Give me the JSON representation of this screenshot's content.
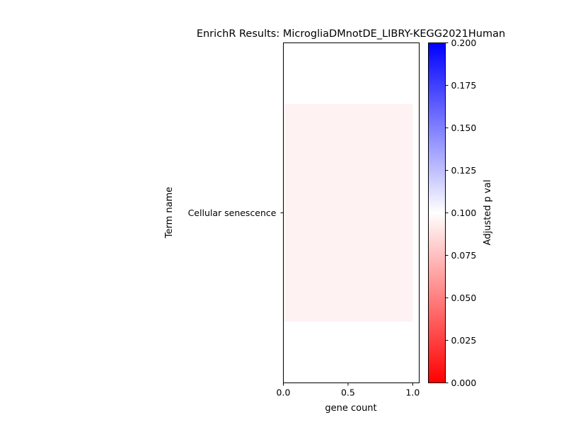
{
  "chart_data": {
    "type": "bar",
    "orientation": "horizontal",
    "title": "EnrichR Results: MicrogliaDMnotDE_LIBRY-KEGG2021Human",
    "xlabel": "gene count",
    "ylabel": "Term name",
    "categories": [
      "Cellular senescence"
    ],
    "values": [
      1
    ],
    "adjusted_p_values": [
      0.085
    ],
    "xlim": [
      0,
      1.05
    ],
    "x_ticks": [
      "0.0",
      "0.5",
      "1.0"
    ],
    "x_tick_values": [
      0,
      0.5,
      1
    ],
    "grid": false,
    "colorbar": {
      "label": "Adjusted p val",
      "range": [
        0,
        0.2
      ],
      "ticks": [
        "0.000",
        "0.025",
        "0.050",
        "0.075",
        "0.100",
        "0.125",
        "0.150",
        "0.175",
        "0.200"
      ],
      "tick_values": [
        0,
        0.025,
        0.05,
        0.075,
        0.1,
        0.125,
        0.15,
        0.175,
        0.2
      ],
      "colors": [
        "#ff0000",
        "#ffffff",
        "#0000ff"
      ]
    }
  }
}
